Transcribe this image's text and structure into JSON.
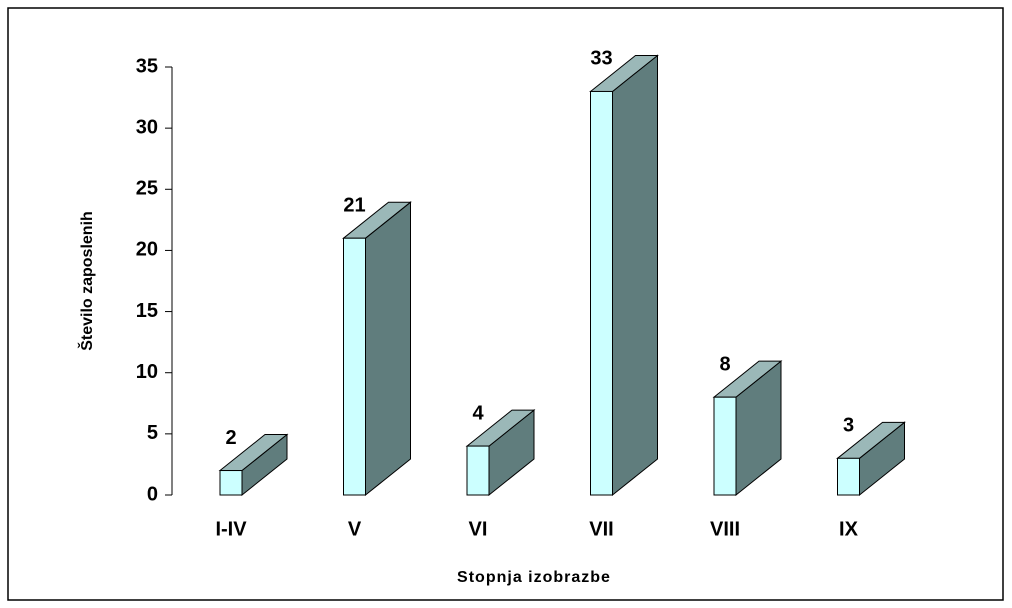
{
  "chart_data": {
    "type": "bar",
    "y_label": "Število zaposlenih",
    "x_label": "Stopnja izobrazbe",
    "categories": [
      "I-IV",
      "V",
      "VI",
      "VII",
      "VIII",
      "IX"
    ],
    "values": [
      2,
      21,
      4,
      33,
      8,
      3
    ],
    "color": "#ccffff",
    "ylim": [
      0,
      35
    ],
    "yticks": [
      0,
      5,
      10,
      15,
      20,
      25,
      30,
      35
    ],
    "grid": false
  }
}
